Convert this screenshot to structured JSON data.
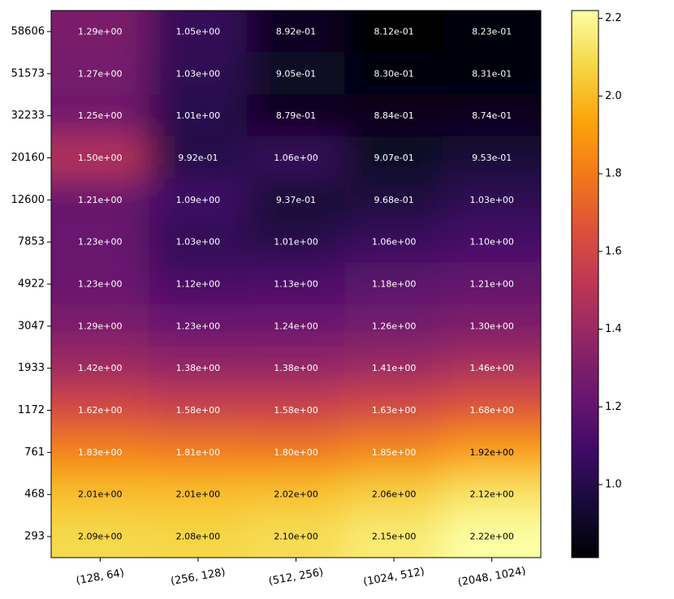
{
  "chart_data": {
    "type": "heatmap",
    "title": "",
    "xlabel": "",
    "ylabel": "",
    "x_categories": [
      "(128, 64)",
      "(256, 128)",
      "(512, 256)",
      "(1024, 512)",
      "(2048, 1024)"
    ],
    "y_categories": [
      "58606",
      "51573",
      "32233",
      "20160",
      "12600",
      "7853",
      "4922",
      "3047",
      "1933",
      "1172",
      "761",
      "468",
      "293"
    ],
    "values": [
      [
        1.29,
        1.05,
        0.892,
        0.812,
        0.823
      ],
      [
        1.27,
        1.03,
        0.905,
        0.83,
        0.831
      ],
      [
        1.25,
        1.01,
        0.879,
        0.884,
        0.874
      ],
      [
        1.5,
        0.992,
        1.06,
        0.907,
        0.953
      ],
      [
        1.21,
        1.09,
        0.937,
        0.968,
        1.03
      ],
      [
        1.23,
        1.03,
        1.01,
        1.06,
        1.1
      ],
      [
        1.23,
        1.12,
        1.13,
        1.18,
        1.21
      ],
      [
        1.29,
        1.23,
        1.24,
        1.26,
        1.3
      ],
      [
        1.42,
        1.38,
        1.38,
        1.41,
        1.46
      ],
      [
        1.62,
        1.58,
        1.58,
        1.63,
        1.68
      ],
      [
        1.83,
        1.81,
        1.8,
        1.85,
        1.92
      ],
      [
        2.01,
        2.01,
        2.02,
        2.06,
        2.12
      ],
      [
        2.09,
        2.08,
        2.1,
        2.15,
        2.22
      ]
    ],
    "labels": [
      [
        "1.29e+00",
        "1.05e+00",
        "8.92e-01",
        "8.12e-01",
        "8.23e-01"
      ],
      [
        "1.27e+00",
        "1.03e+00",
        "9.05e-01",
        "8.30e-01",
        "8.31e-01"
      ],
      [
        "1.25e+00",
        "1.01e+00",
        "8.79e-01",
        "8.84e-01",
        "8.74e-01"
      ],
      [
        "1.50e+00",
        "9.92e-01",
        "1.06e+00",
        "9.07e-01",
        "9.53e-01"
      ],
      [
        "1.21e+00",
        "1.09e+00",
        "9.37e-01",
        "9.68e-01",
        "1.03e+00"
      ],
      [
        "1.23e+00",
        "1.03e+00",
        "1.01e+00",
        "1.06e+00",
        "1.10e+00"
      ],
      [
        "1.23e+00",
        "1.12e+00",
        "1.13e+00",
        "1.18e+00",
        "1.21e+00"
      ],
      [
        "1.29e+00",
        "1.23e+00",
        "1.24e+00",
        "1.26e+00",
        "1.30e+00"
      ],
      [
        "1.42e+00",
        "1.38e+00",
        "1.38e+00",
        "1.41e+00",
        "1.46e+00"
      ],
      [
        "1.62e+00",
        "1.58e+00",
        "1.58e+00",
        "1.63e+00",
        "1.68e+00"
      ],
      [
        "1.83e+00",
        "1.81e+00",
        "1.80e+00",
        "1.85e+00",
        "1.92e+00"
      ],
      [
        "2.01e+00",
        "2.01e+00",
        "2.02e+00",
        "2.06e+00",
        "2.12e+00"
      ],
      [
        "2.09e+00",
        "2.08e+00",
        "2.10e+00",
        "2.15e+00",
        "2.22e+00"
      ]
    ],
    "colormap": "inferno",
    "colorbar": {
      "range": [
        0.812,
        2.22
      ],
      "ticks": [
        1.0,
        1.2,
        1.4,
        1.6,
        1.8,
        2.0,
        2.2
      ],
      "tick_labels": [
        "1.0",
        "1.2",
        "1.4",
        "1.6",
        "1.8",
        "2.0",
        "2.2"
      ]
    },
    "legend": "colorbar-right",
    "grid": false
  }
}
